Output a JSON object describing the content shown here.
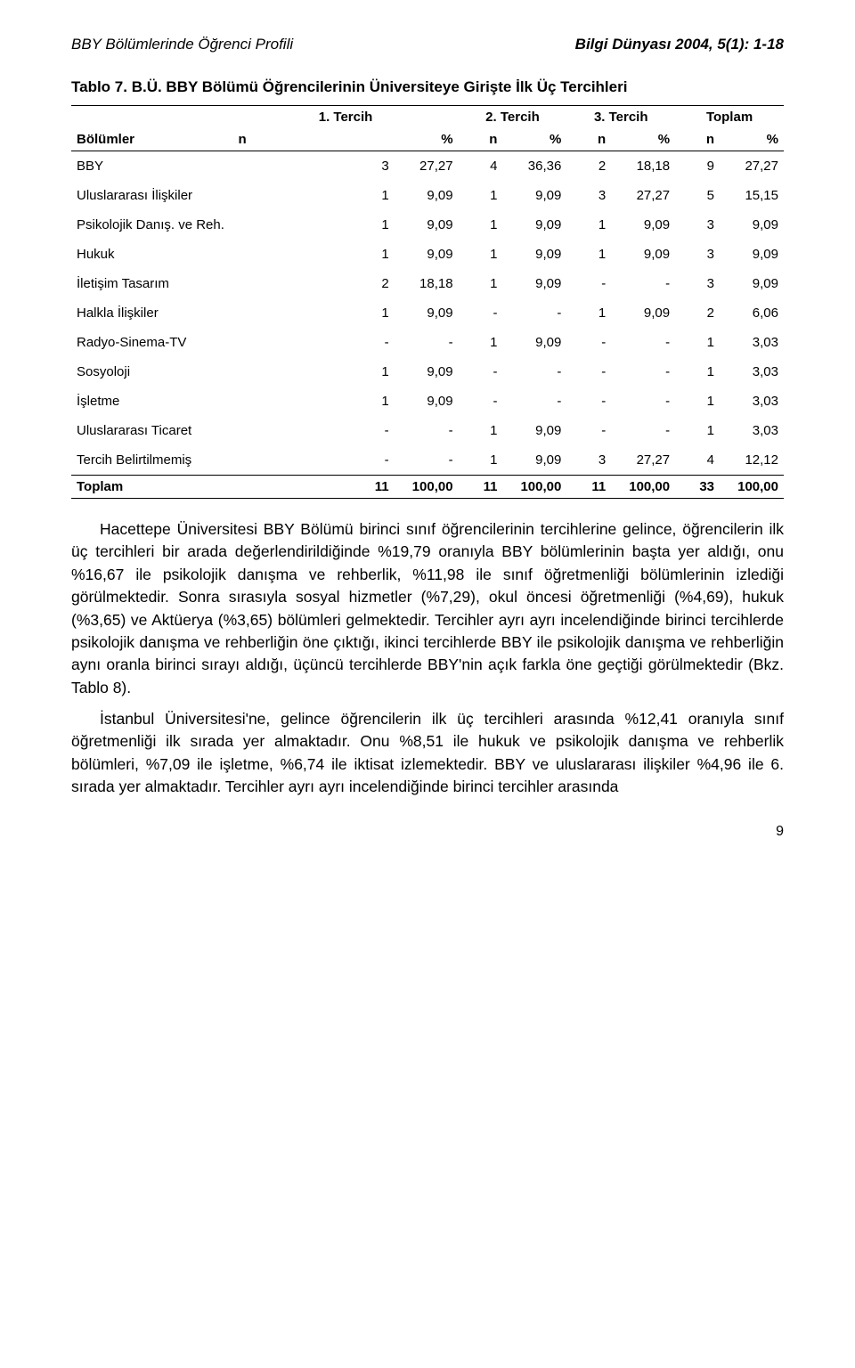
{
  "header": {
    "left": "BBY Bölümlerinde Öğrenci Profili",
    "right": "Bilgi Dünyası 2004, 5(1): 1-18"
  },
  "table": {
    "title": "Tablo 7. B.Ü. BBY Bölümü Öğrencilerinin Üniversiteye Girişte İlk Üç Tercihleri",
    "col_header_left": "Bölümler",
    "col_groups": [
      "1. Tercih",
      "2. Tercih",
      "3. Tercih",
      "Toplam"
    ],
    "sub_n": "n",
    "sub_p": "%",
    "rows": [
      {
        "label": "BBY",
        "c": [
          "3",
          "27,27",
          "4",
          "36,36",
          "2",
          "18,18",
          "9",
          "27,27"
        ]
      },
      {
        "label": "Uluslararası İlişkiler",
        "c": [
          "1",
          "9,09",
          "1",
          "9,09",
          "3",
          "27,27",
          "5",
          "15,15"
        ]
      },
      {
        "label": "Psikolojik Danış. ve Reh.",
        "c": [
          "1",
          "9,09",
          "1",
          "9,09",
          "1",
          "9,09",
          "3",
          "9,09"
        ]
      },
      {
        "label": "Hukuk",
        "c": [
          "1",
          "9,09",
          "1",
          "9,09",
          "1",
          "9,09",
          "3",
          "9,09"
        ]
      },
      {
        "label": "İletişim Tasarım",
        "c": [
          "2",
          "18,18",
          "1",
          "9,09",
          "-",
          "-",
          "3",
          "9,09"
        ]
      },
      {
        "label": "Halkla İlişkiler",
        "c": [
          "1",
          "9,09",
          "-",
          "-",
          "1",
          "9,09",
          "2",
          "6,06"
        ]
      },
      {
        "label": "Radyo-Sinema-TV",
        "c": [
          "-",
          "-",
          "1",
          "9,09",
          "-",
          "-",
          "1",
          "3,03"
        ]
      },
      {
        "label": "Sosyoloji",
        "c": [
          "1",
          "9,09",
          "-",
          "-",
          "-",
          "-",
          "1",
          "3,03"
        ]
      },
      {
        "label": "İşletme",
        "c": [
          "1",
          "9,09",
          "-",
          "-",
          "-",
          "-",
          "1",
          "3,03"
        ]
      },
      {
        "label": "Uluslararası Ticaret",
        "c": [
          "-",
          "-",
          "1",
          "9,09",
          "-",
          "-",
          "1",
          "3,03"
        ]
      },
      {
        "label": "Tercih Belirtilmemiş",
        "c": [
          "-",
          "-",
          "1",
          "9,09",
          "3",
          "27,27",
          "4",
          "12,12"
        ]
      }
    ],
    "total": {
      "label": "Toplam",
      "c": [
        "11",
        "100,00",
        "11",
        "100,00",
        "11",
        "100,00",
        "33",
        "100,00"
      ]
    }
  },
  "paragraphs": {
    "p1": "Hacettepe Üniversitesi BBY Bölümü birinci sınıf öğrencilerinin tercihlerine gelince, öğrencilerin ilk üç tercihleri bir arada değerlendirildiğinde %19,79 oranıyla BBY bölümlerinin başta yer aldığı, onu %16,67 ile psikolojik danışma ve rehberlik, %11,98 ile sınıf öğretmenliği bölümlerinin izlediği görülmektedir. Sonra sırasıyla sosyal hizmetler (%7,29), okul öncesi öğretmenliği (%4,69), hukuk (%3,65) ve Aktüerya (%3,65) bölümleri gelmektedir. Tercihler ayrı ayrı incelendiğinde birinci tercihlerde psikolojik danışma ve rehberliğin öne çıktığı, ikinci tercihlerde BBY ile psikolojik danışma ve rehberliğin aynı oranla birinci sırayı aldığı, üçüncü tercihlerde BBY'nin açık farkla öne geçtiği görülmektedir (Bkz. Tablo 8).",
    "p2": "İstanbul Üniversitesi'ne, gelince öğrencilerin ilk üç tercihleri arasında %12,41 oranıyla sınıf öğretmenliği ilk sırada yer almaktadır. Onu %8,51 ile hukuk ve psikolojik danışma ve rehberlik bölümleri, %7,09 ile işletme, %6,74 ile iktisat izlemektedir. BBY ve uluslararası ilişkiler %4,96 ile 6. sırada yer almaktadır. Tercihler ayrı ayrı incelendiğinde birinci tercihler arasında"
  },
  "page_number": "9",
  "style": {
    "font_family": "Arial",
    "body_font_size_pt": 13,
    "table_font_size_pt": 11,
    "text_color": "#000000",
    "background_color": "#ffffff",
    "border_color": "#000000"
  }
}
